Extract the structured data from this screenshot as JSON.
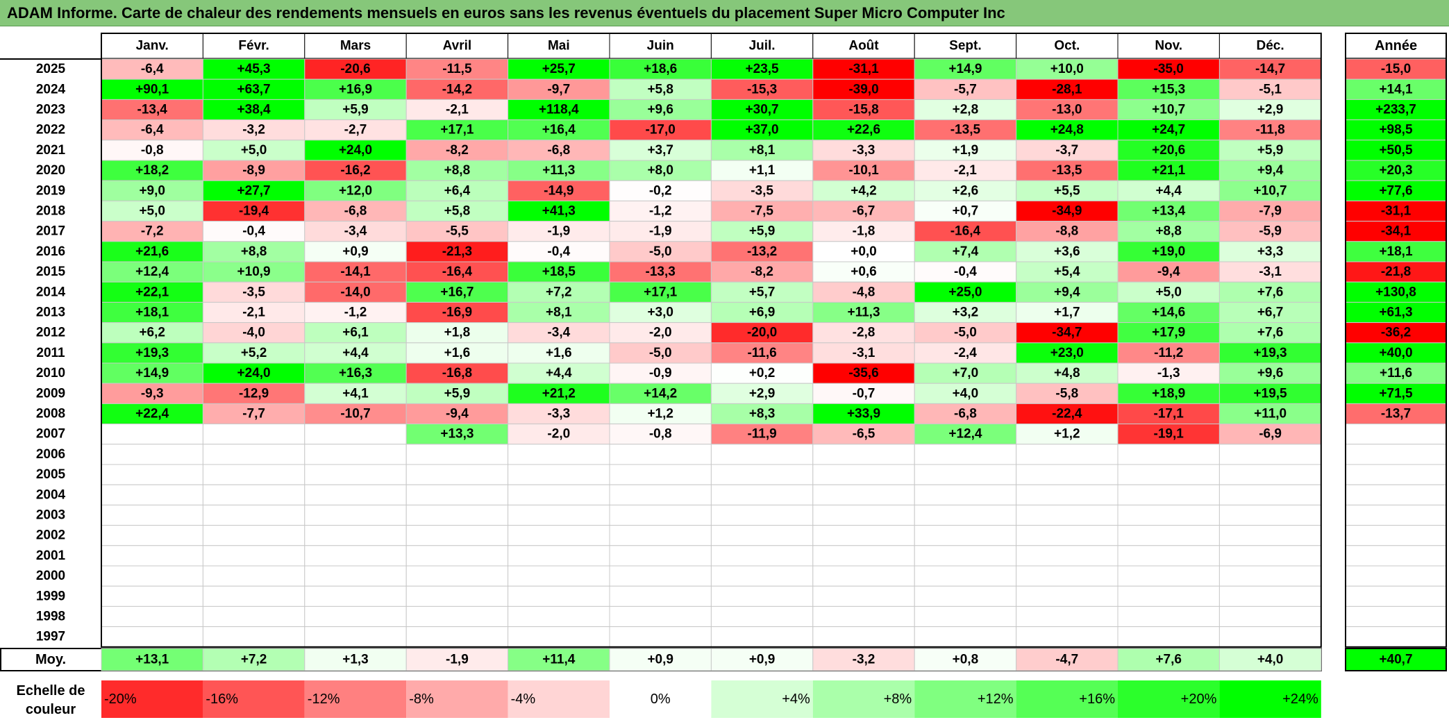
{
  "title": "ADAM Informe. Carte de chaleur des rendements mensuels en euros sans les revenus éventuels du placement Super Micro Computer Inc",
  "colors": {
    "title_bg": "#86c77a",
    "max_green": "#00ff00",
    "max_red": "#ff0000",
    "neutral": "#ffffff"
  },
  "chart_data": {
    "type": "heatmap",
    "title": "ADAM Informe. Carte de chaleur des rendements mensuels en euros sans les revenus éventuels du placement Super Micro Computer Inc",
    "months": [
      "Janv.",
      "Févr.",
      "Mars",
      "Avril",
      "Mai",
      "Juin",
      "Juil.",
      "Août",
      "Sept.",
      "Oct.",
      "Nov.",
      "Déc."
    ],
    "year_header": "Année",
    "avg_label": "Moy.",
    "rows": [
      {
        "year": "2025",
        "values": [
          "-6,4",
          "+45,3",
          "-20,6",
          "-11,5",
          "+25,7",
          "+18,6",
          "+23,5",
          "-31,1",
          "+14,9",
          "+10,0",
          "-35,0",
          "-14,7"
        ],
        "annual": "-15,0"
      },
      {
        "year": "2024",
        "values": [
          "+90,1",
          "+63,7",
          "+16,9",
          "-14,2",
          "-9,7",
          "+5,8",
          "-15,3",
          "-39,0",
          "-5,7",
          "-28,1",
          "+15,3",
          "-5,1"
        ],
        "annual": "+14,1"
      },
      {
        "year": "2023",
        "values": [
          "-13,4",
          "+38,4",
          "+5,9",
          "-2,1",
          "+118,4",
          "+9,6",
          "+30,7",
          "-15,8",
          "+2,8",
          "-13,0",
          "+10,7",
          "+2,9"
        ],
        "annual": "+233,7"
      },
      {
        "year": "2022",
        "values": [
          "-6,4",
          "-3,2",
          "-2,7",
          "+17,1",
          "+16,4",
          "-17,0",
          "+37,0",
          "+22,6",
          "-13,5",
          "+24,8",
          "+24,7",
          "-11,8"
        ],
        "annual": "+98,5"
      },
      {
        "year": "2021",
        "values": [
          "-0,8",
          "+5,0",
          "+24,0",
          "-8,2",
          "-6,8",
          "+3,7",
          "+8,1",
          "-3,3",
          "+1,9",
          "-3,7",
          "+20,6",
          "+5,9"
        ],
        "annual": "+50,5"
      },
      {
        "year": "2020",
        "values": [
          "+18,2",
          "-8,9",
          "-16,2",
          "+8,8",
          "+11,3",
          "+8,0",
          "+1,1",
          "-10,1",
          "-2,1",
          "-13,5",
          "+21,1",
          "+9,4"
        ],
        "annual": "+20,3"
      },
      {
        "year": "2019",
        "values": [
          "+9,0",
          "+27,7",
          "+12,0",
          "+6,4",
          "-14,9",
          "-0,2",
          "-3,5",
          "+4,2",
          "+2,6",
          "+5,5",
          "+4,4",
          "+10,7"
        ],
        "annual": "+77,6"
      },
      {
        "year": "2018",
        "values": [
          "+5,0",
          "-19,4",
          "-6,8",
          "+5,8",
          "+41,3",
          "-1,2",
          "-7,5",
          "-6,7",
          "+0,7",
          "-34,9",
          "+13,4",
          "-7,9"
        ],
        "annual": "-31,1"
      },
      {
        "year": "2017",
        "values": [
          "-7,2",
          "-0,4",
          "-3,4",
          "-5,5",
          "-1,9",
          "-1,9",
          "+5,9",
          "-1,8",
          "-16,4",
          "-8,8",
          "+8,8",
          "-5,9"
        ],
        "annual": "-34,1"
      },
      {
        "year": "2016",
        "values": [
          "+21,6",
          "+8,8",
          "+0,9",
          "-21,3",
          "-0,4",
          "-5,0",
          "-13,2",
          "+0,0",
          "+7,4",
          "+3,6",
          "+19,0",
          "+3,3"
        ],
        "annual": "+18,1"
      },
      {
        "year": "2015",
        "values": [
          "+12,4",
          "+10,9",
          "-14,1",
          "-16,4",
          "+18,5",
          "-13,3",
          "-8,2",
          "+0,6",
          "-0,4",
          "+5,4",
          "-9,4",
          "-3,1"
        ],
        "annual": "-21,8"
      },
      {
        "year": "2014",
        "values": [
          "+22,1",
          "-3,5",
          "-14,0",
          "+16,7",
          "+7,2",
          "+17,1",
          "+5,7",
          "-4,8",
          "+25,0",
          "+9,4",
          "+5,0",
          "+7,6"
        ],
        "annual": "+130,8"
      },
      {
        "year": "2013",
        "values": [
          "+18,1",
          "-2,1",
          "-1,2",
          "-16,9",
          "+8,1",
          "+3,0",
          "+6,9",
          "+11,3",
          "+3,2",
          "+1,7",
          "+14,6",
          "+6,7"
        ],
        "annual": "+61,3"
      },
      {
        "year": "2012",
        "values": [
          "+6,2",
          "-4,0",
          "+6,1",
          "+1,8",
          "-3,4",
          "-2,0",
          "-20,0",
          "-2,8",
          "-5,0",
          "-34,7",
          "+17,9",
          "+7,6"
        ],
        "annual": "-36,2"
      },
      {
        "year": "2011",
        "values": [
          "+19,3",
          "+5,2",
          "+4,4",
          "+1,6",
          "+1,6",
          "-5,0",
          "-11,6",
          "-3,1",
          "-2,4",
          "+23,0",
          "-11,2",
          "+19,3"
        ],
        "annual": "+40,0"
      },
      {
        "year": "2010",
        "values": [
          "+14,9",
          "+24,0",
          "+16,3",
          "-16,8",
          "+4,4",
          "-0,9",
          "+0,2",
          "-35,6",
          "+7,0",
          "+4,8",
          "-1,3",
          "+9,6"
        ],
        "annual": "+11,6"
      },
      {
        "year": "2009",
        "values": [
          "-9,3",
          "-12,9",
          "+4,1",
          "+5,9",
          "+21,2",
          "+14,2",
          "+2,9",
          "-0,7",
          "+4,0",
          "-5,8",
          "+18,9",
          "+19,5"
        ],
        "annual": "+71,5"
      },
      {
        "year": "2008",
        "values": [
          "+22,4",
          "-7,7",
          "-10,7",
          "-9,4",
          "-3,3",
          "+1,2",
          "+8,3",
          "+33,9",
          "-6,8",
          "-22,4",
          "-17,1",
          "+11,0"
        ],
        "annual": "-13,7"
      },
      {
        "year": "2007",
        "values": [
          "",
          "",
          "",
          "+13,3",
          "-2,0",
          "-0,8",
          "-11,9",
          "-6,5",
          "+12,4",
          "+1,2",
          "-19,1",
          "-6,9"
        ],
        "annual": ""
      },
      {
        "year": "2006",
        "values": [
          "",
          "",
          "",
          "",
          "",
          "",
          "",
          "",
          "",
          "",
          "",
          ""
        ],
        "annual": ""
      },
      {
        "year": "2005",
        "values": [
          "",
          "",
          "",
          "",
          "",
          "",
          "",
          "",
          "",
          "",
          "",
          ""
        ],
        "annual": ""
      },
      {
        "year": "2004",
        "values": [
          "",
          "",
          "",
          "",
          "",
          "",
          "",
          "",
          "",
          "",
          "",
          ""
        ],
        "annual": ""
      },
      {
        "year": "2003",
        "values": [
          "",
          "",
          "",
          "",
          "",
          "",
          "",
          "",
          "",
          "",
          "",
          ""
        ],
        "annual": ""
      },
      {
        "year": "2002",
        "values": [
          "",
          "",
          "",
          "",
          "",
          "",
          "",
          "",
          "",
          "",
          "",
          ""
        ],
        "annual": ""
      },
      {
        "year": "2001",
        "values": [
          "",
          "",
          "",
          "",
          "",
          "",
          "",
          "",
          "",
          "",
          "",
          ""
        ],
        "annual": ""
      },
      {
        "year": "2000",
        "values": [
          "",
          "",
          "",
          "",
          "",
          "",
          "",
          "",
          "",
          "",
          "",
          ""
        ],
        "annual": ""
      },
      {
        "year": "1999",
        "values": [
          "",
          "",
          "",
          "",
          "",
          "",
          "",
          "",
          "",
          "",
          "",
          ""
        ],
        "annual": ""
      },
      {
        "year": "1998",
        "values": [
          "",
          "",
          "",
          "",
          "",
          "",
          "",
          "",
          "",
          "",
          "",
          ""
        ],
        "annual": ""
      },
      {
        "year": "1997",
        "values": [
          "",
          "",
          "",
          "",
          "",
          "",
          "",
          "",
          "",
          "",
          "",
          ""
        ],
        "annual": ""
      }
    ],
    "averages": [
      "+13,1",
      "+7,2",
      "+1,3",
      "-1,9",
      "+11,4",
      "+0,9",
      "+0,9",
      "-3,2",
      "+0,8",
      "-4,7",
      "+7,6",
      "+4,0"
    ],
    "annual_average": "+40,7",
    "scale_label_line1": "Echelle de",
    "scale_label_line2": "couleur",
    "scale": [
      "-20%",
      "-16%",
      "-12%",
      "-8%",
      "-4%",
      "0%",
      "+4%",
      "+8%",
      "+12%",
      "+16%",
      "+20%",
      "+24%"
    ],
    "scale_values": [
      -20,
      -16,
      -12,
      -8,
      -4,
      0,
      4,
      8,
      12,
      16,
      20,
      24
    ]
  }
}
